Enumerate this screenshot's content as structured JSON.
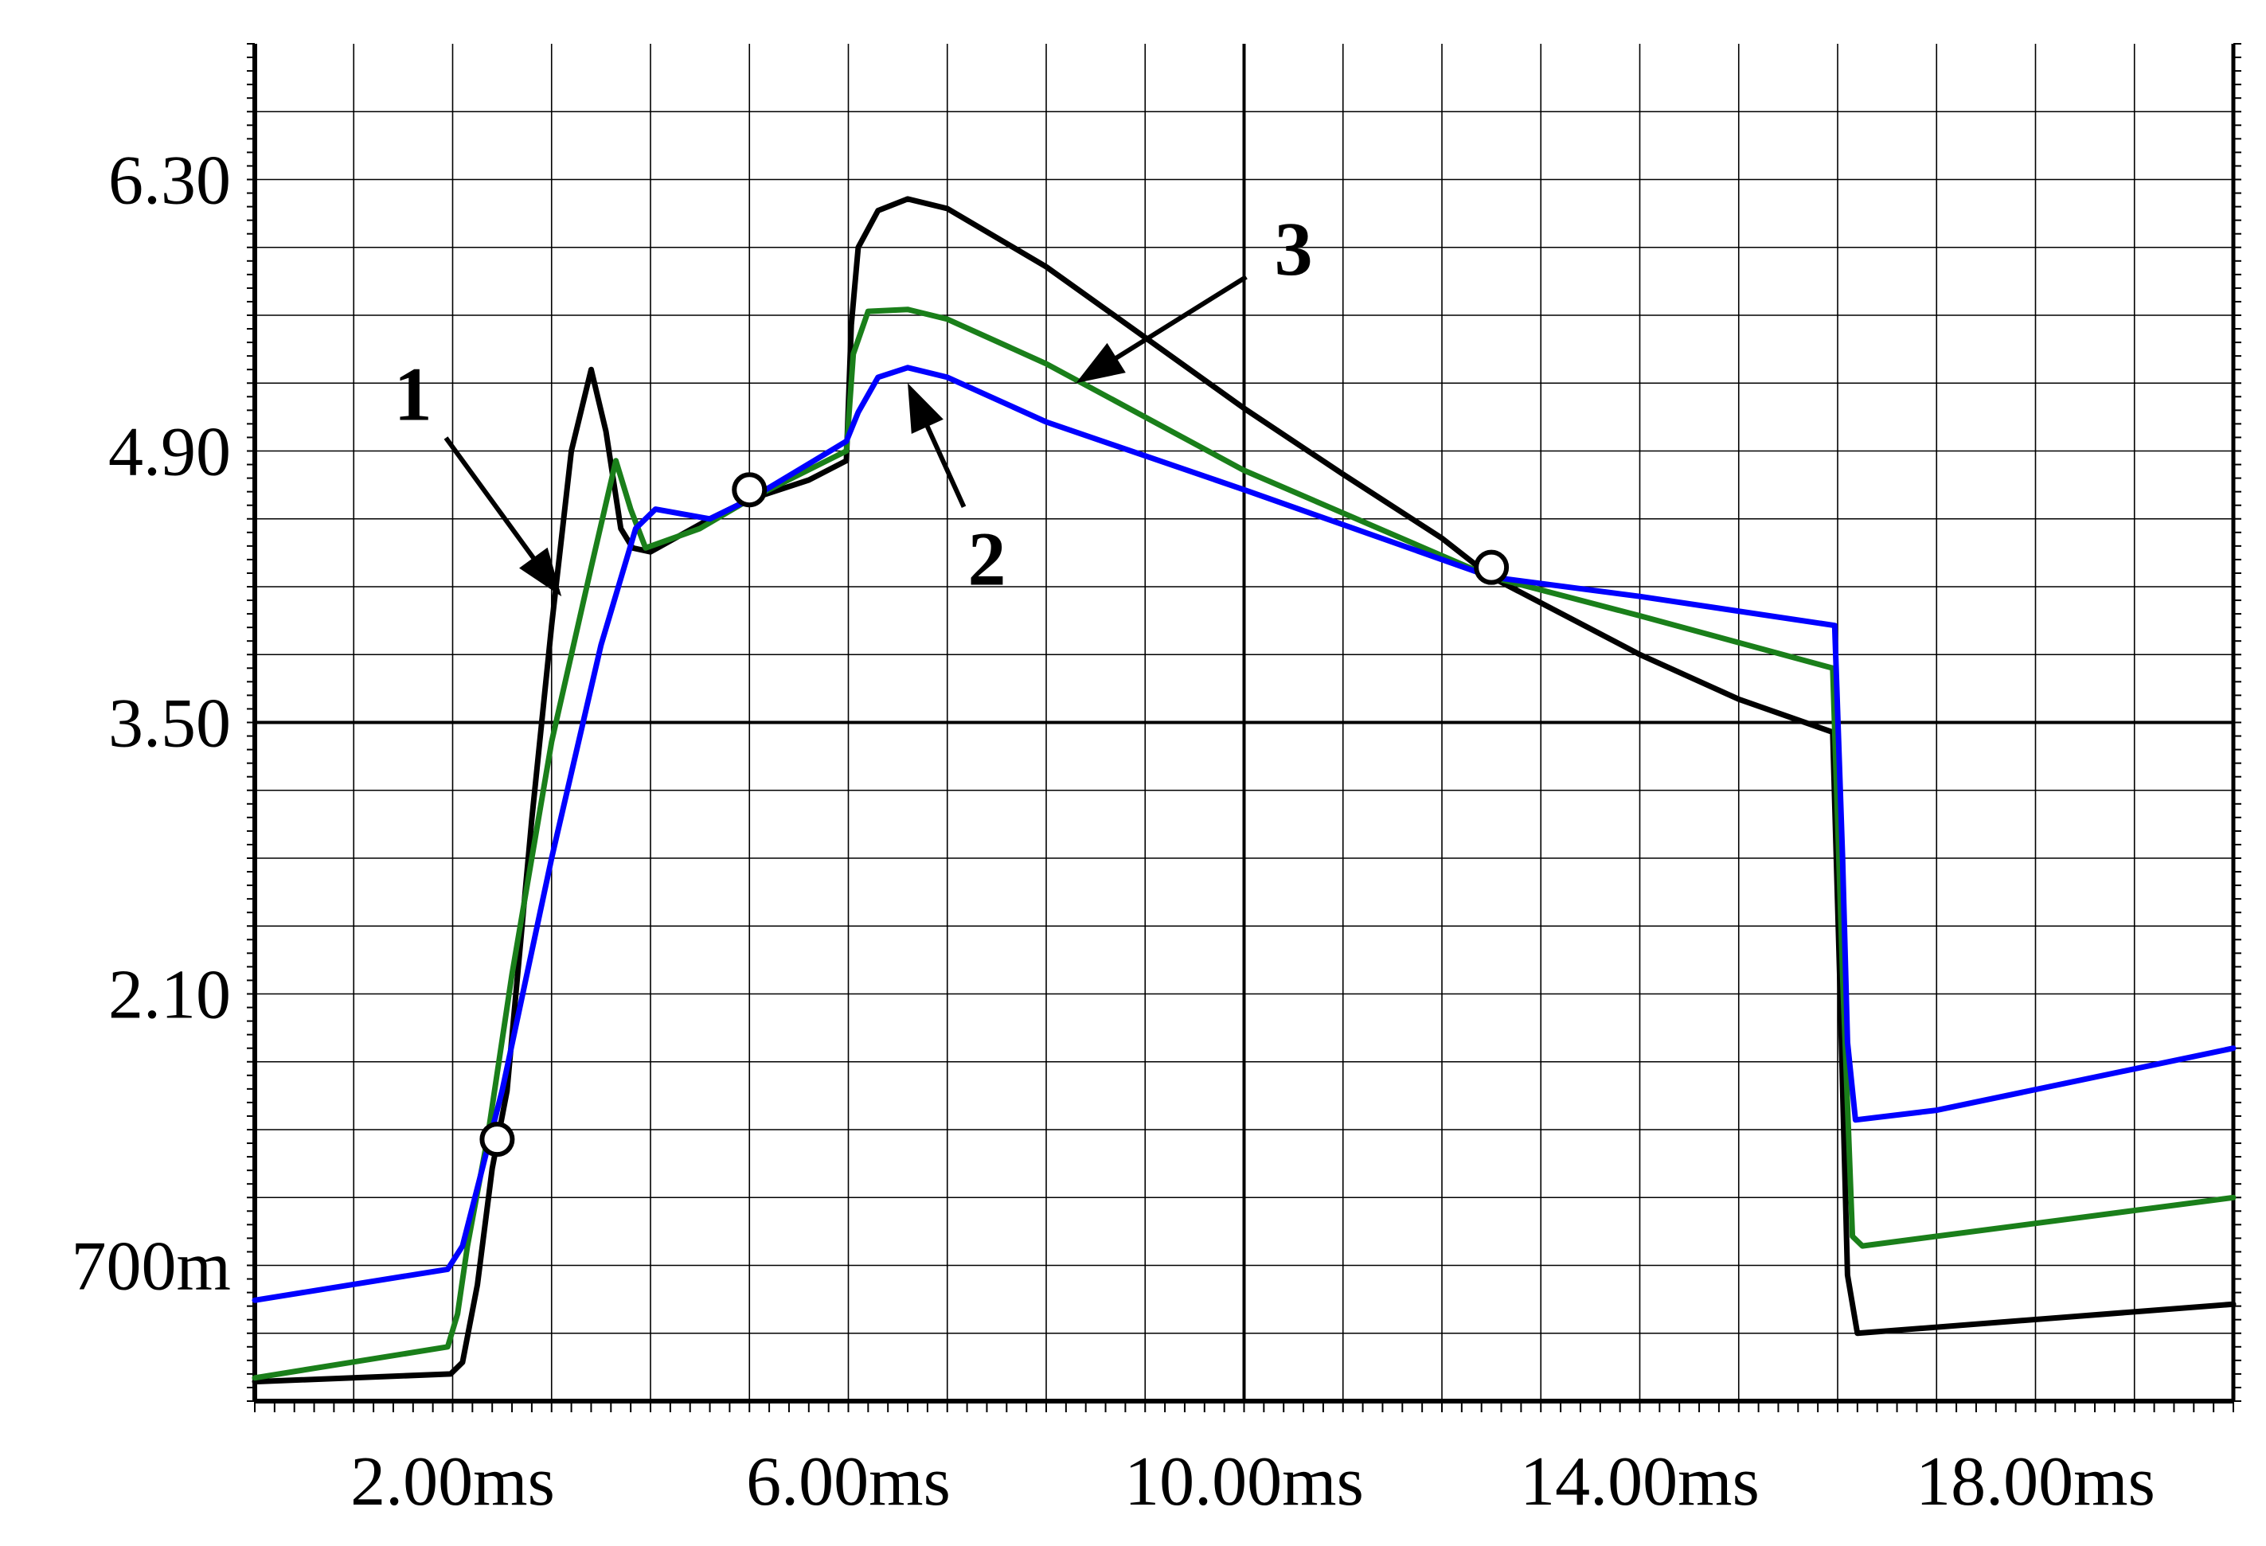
{
  "chart_data": {
    "type": "line",
    "title": "",
    "xlabel": "",
    "ylabel": "",
    "xlim": [
      0,
      20
    ],
    "ylim": [
      0,
      7.0
    ],
    "x_ticks": [
      {
        "value": 2,
        "label": "2.00ms"
      },
      {
        "value": 6,
        "label": "6.00ms"
      },
      {
        "value": 10,
        "label": "10.00ms"
      },
      {
        "value": 14,
        "label": "14.00ms"
      },
      {
        "value": 18,
        "label": "18.00ms"
      }
    ],
    "y_ticks": [
      {
        "value": 0.7,
        "label": "700m"
      },
      {
        "value": 2.1,
        "label": "2.10"
      },
      {
        "value": 3.5,
        "label": "3.50"
      },
      {
        "value": 4.9,
        "label": "4.90"
      },
      {
        "value": 6.3,
        "label": "6.30"
      }
    ],
    "grid": true,
    "series": [
      {
        "color": "#000000",
        "points": [
          [
            0,
            0.1
          ],
          [
            1.98,
            0.14
          ],
          [
            2.1,
            0.2
          ],
          [
            2.25,
            0.6
          ],
          [
            2.4,
            1.2
          ],
          [
            2.55,
            1.6
          ],
          [
            2.8,
            3.0
          ],
          [
            3.0,
            4.0
          ],
          [
            3.2,
            4.9
          ],
          [
            3.4,
            5.32
          ],
          [
            3.55,
            5.0
          ],
          [
            3.7,
            4.5
          ],
          [
            3.82,
            4.4
          ],
          [
            4.0,
            4.38
          ],
          [
            4.6,
            4.55
          ],
          [
            5.0,
            4.65
          ],
          [
            5.6,
            4.75
          ],
          [
            5.98,
            4.85
          ],
          [
            6.03,
            5.55
          ],
          [
            6.1,
            5.95
          ],
          [
            6.3,
            6.14
          ],
          [
            6.6,
            6.2
          ],
          [
            7.0,
            6.15
          ],
          [
            8.0,
            5.85
          ],
          [
            10.0,
            5.12
          ],
          [
            11.0,
            4.78
          ],
          [
            12.0,
            4.45
          ],
          [
            12.5,
            4.25
          ],
          [
            14.0,
            3.85
          ],
          [
            15.0,
            3.62
          ],
          [
            15.95,
            3.45
          ],
          [
            16.02,
            2.2
          ],
          [
            16.1,
            0.65
          ],
          [
            16.2,
            0.35
          ],
          [
            20,
            0.5
          ]
        ]
      },
      {
        "color": "#1a7f1a",
        "points": [
          [
            0,
            0.12
          ],
          [
            1.95,
            0.28
          ],
          [
            2.05,
            0.45
          ],
          [
            2.15,
            0.8
          ],
          [
            2.35,
            1.35
          ],
          [
            2.6,
            2.2
          ],
          [
            3.0,
            3.4
          ],
          [
            3.4,
            4.3
          ],
          [
            3.65,
            4.85
          ],
          [
            3.8,
            4.6
          ],
          [
            3.95,
            4.4
          ],
          [
            4.5,
            4.5
          ],
          [
            5.0,
            4.65
          ],
          [
            5.98,
            4.9
          ],
          [
            6.05,
            5.4
          ],
          [
            6.2,
            5.62
          ],
          [
            6.6,
            5.63
          ],
          [
            7.0,
            5.58
          ],
          [
            8.0,
            5.35
          ],
          [
            10.0,
            4.8
          ],
          [
            12.5,
            4.25
          ],
          [
            14.0,
            4.05
          ],
          [
            15.95,
            3.78
          ],
          [
            16.05,
            2.2
          ],
          [
            16.15,
            0.85
          ],
          [
            16.25,
            0.8
          ],
          [
            20,
            1.05
          ]
        ]
      },
      {
        "color": "#0000ff",
        "points": [
          [
            0,
            0.52
          ],
          [
            1.95,
            0.68
          ],
          [
            2.1,
            0.8
          ],
          [
            2.3,
            1.2
          ],
          [
            2.5,
            1.6
          ],
          [
            3.0,
            2.8
          ],
          [
            3.5,
            3.9
          ],
          [
            3.85,
            4.5
          ],
          [
            4.05,
            4.6
          ],
          [
            4.6,
            4.55
          ],
          [
            5.0,
            4.65
          ],
          [
            5.98,
            4.95
          ],
          [
            6.1,
            5.1
          ],
          [
            6.3,
            5.28
          ],
          [
            6.6,
            5.33
          ],
          [
            7.0,
            5.28
          ],
          [
            8.0,
            5.05
          ],
          [
            10.0,
            4.7
          ],
          [
            12.5,
            4.25
          ],
          [
            14.0,
            4.15
          ],
          [
            15.97,
            4.0
          ],
          [
            16.05,
            2.8
          ],
          [
            16.1,
            1.85
          ],
          [
            16.18,
            1.45
          ],
          [
            17.0,
            1.5
          ],
          [
            20,
            1.82
          ]
        ]
      }
    ],
    "annotations": [
      {
        "text": "1",
        "x": 3.1,
        "y": 4.15,
        "label_x": 1.6,
        "label_y": 5.2
      },
      {
        "text": "2",
        "x": 6.6,
        "y": 5.25,
        "label_x": 7.4,
        "label_y": 4.35
      },
      {
        "text": "3",
        "x": 8.3,
        "y": 5.25,
        "label_x": 10.5,
        "label_y": 5.95
      }
    ],
    "markers": [
      [
        2.45,
        1.35
      ],
      [
        5.0,
        4.7
      ],
      [
        12.5,
        4.3
      ]
    ]
  }
}
